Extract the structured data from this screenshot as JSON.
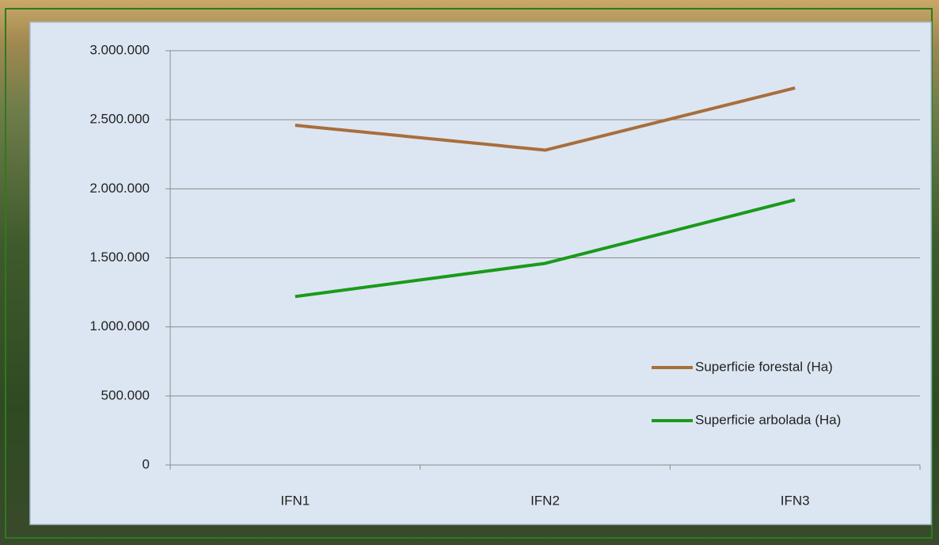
{
  "chart_data": {
    "type": "line",
    "categories": [
      "IFN1",
      "IFN2",
      "IFN3"
    ],
    "series": [
      {
        "name": "Superficie forestal (Ha)",
        "color": "#a86e3c",
        "values": [
          2460000,
          2280000,
          2730000
        ]
      },
      {
        "name": "Superficie arbolada (Ha)",
        "color": "#1a9a1a",
        "values": [
          1220000,
          1460000,
          1920000
        ]
      }
    ],
    "ylim": [
      0,
      3000000
    ],
    "yticks": [
      0,
      {
        "value": 500000,
        "label": "500.000"
      },
      {
        "value": 1000000,
        "label": "1.000.000"
      },
      {
        "value": 1500000,
        "label": "1.500.000"
      },
      {
        "value": 2000000,
        "label": "2.000.000"
      },
      {
        "value": 2500000,
        "label": "2.500.000"
      },
      {
        "value": 3000000,
        "label": "3.000.000"
      }
    ],
    "grid": true,
    "legend": "right"
  }
}
